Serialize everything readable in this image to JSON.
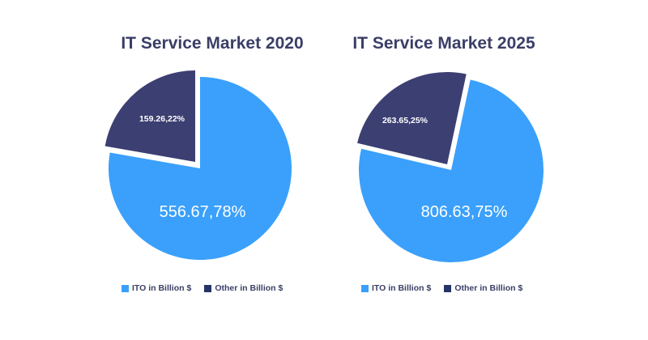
{
  "colors": {
    "ito": "#3aa0fb",
    "other": "#3c3f72",
    "legend_other": "#253468",
    "title": "#3b3e66"
  },
  "chart_data": [
    {
      "type": "pie",
      "title": "IT Service Market 2020",
      "slices": [
        {
          "name": "ITO in Billion $",
          "value": 556.67,
          "percent": 78,
          "label": "556.67,78%"
        },
        {
          "name": "Other in Billion $",
          "value": 159.26,
          "percent": 22,
          "label": "159.26,22%"
        }
      ],
      "legend": [
        "ITO in Billion $",
        "Other in Billion $"
      ],
      "legend_placement": "bottom"
    },
    {
      "type": "pie",
      "title": "IT Service Market 2025",
      "slices": [
        {
          "name": "ITO in Billion $",
          "value": 806.63,
          "percent": 75,
          "label": "806.63,75%"
        },
        {
          "name": "Other in Billion $",
          "value": 263.65,
          "percent": 25,
          "label": "263.65,25%"
        }
      ],
      "legend": [
        "ITO in Billion $",
        "Other in Billion $"
      ],
      "legend_placement": "bottom"
    }
  ]
}
